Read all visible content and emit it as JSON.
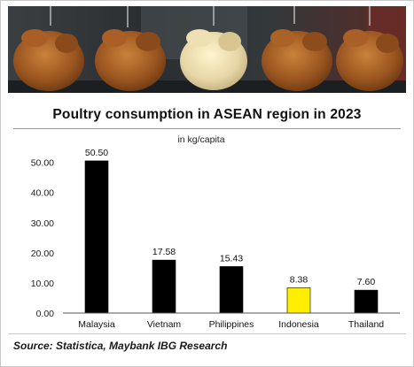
{
  "source_note": "Source: Statistica, Maybank IBG Research",
  "photo": {
    "icon": "roast-chicken-photo",
    "colors": {
      "backdrop": "#262b30",
      "chicken": "#9a5520",
      "pale_chicken": "#e7d6a6"
    }
  },
  "chart_data": {
    "type": "bar",
    "title": "Poultry consumption in ASEAN region in 2023",
    "unit_label": "in kg/capita",
    "categories": [
      "Malaysia",
      "Vietnam",
      "Philippines",
      "Indonesia",
      "Thailand"
    ],
    "values": [
      50.5,
      17.58,
      15.43,
      8.38,
      7.6
    ],
    "value_labels": [
      "50.50",
      "17.58",
      "15.43",
      "8.38",
      "7.60"
    ],
    "bar_colors": [
      "#000000",
      "#000000",
      "#000000",
      "#ffee00",
      "#000000"
    ],
    "yticks": [
      0,
      10,
      20,
      30,
      40,
      50
    ],
    "ytick_labels": [
      "0.00",
      "10.00",
      "20.00",
      "30.00",
      "40.00",
      "50.00"
    ],
    "ylim": [
      0,
      54
    ],
    "xlabel": "",
    "ylabel": "",
    "grid": false,
    "legend": "none"
  }
}
